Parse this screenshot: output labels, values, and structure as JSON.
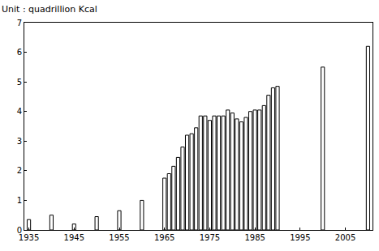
{
  "chart_data": {
    "type": "bar",
    "ylabel": "Unit : quadrillion Kcal",
    "x": [
      1935,
      1940,
      1945,
      1950,
      1955,
      1960,
      1965,
      1966,
      1967,
      1968,
      1969,
      1970,
      1971,
      1972,
      1973,
      1974,
      1975,
      1976,
      1977,
      1978,
      1979,
      1980,
      1981,
      1982,
      1983,
      1984,
      1985,
      1986,
      1987,
      1988,
      1989,
      1990,
      2000,
      2010
    ],
    "values": [
      0.35,
      0.5,
      0.2,
      0.45,
      0.65,
      1.0,
      1.75,
      1.9,
      2.15,
      2.45,
      2.8,
      3.2,
      3.25,
      3.45,
      3.85,
      3.85,
      3.7,
      3.85,
      3.85,
      3.85,
      4.05,
      3.95,
      3.75,
      3.65,
      3.8,
      4.0,
      4.05,
      4.05,
      4.2,
      4.55,
      4.8,
      4.85,
      5.5,
      6.2
    ],
    "color": "#ffffff",
    "xlim": [
      1934,
      2011
    ],
    "xticks": [
      1935,
      1945,
      1955,
      1965,
      1975,
      1985,
      1995,
      2005
    ],
    "ylim": [
      0,
      7
    ],
    "yticks": [
      0,
      1,
      2,
      3,
      4,
      5,
      6,
      7
    ],
    "grid": false
  }
}
